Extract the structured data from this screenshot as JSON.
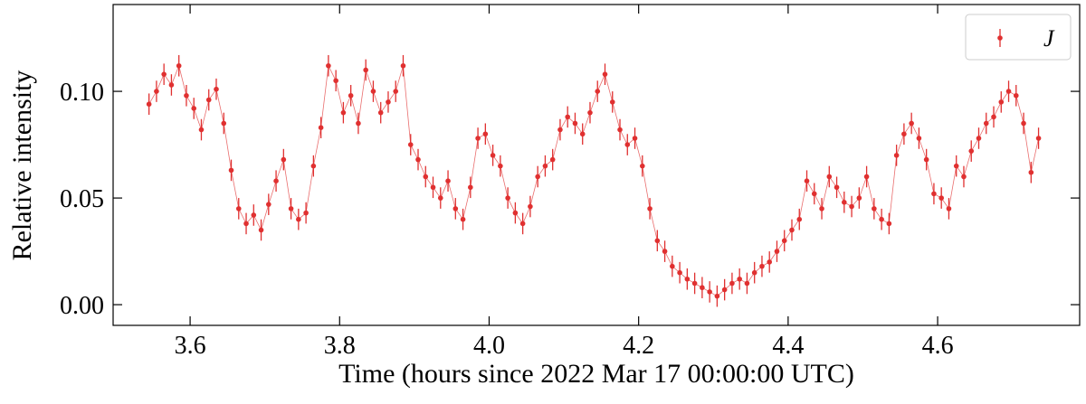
{
  "chart_data": {
    "type": "errorbar",
    "xlabel": "Time (hours since 2022 Mar 17 00:00:00 UTC)",
    "ylabel": "Relative intensity",
    "xlim": [
      3.497,
      4.79
    ],
    "ylim": [
      -0.0097,
      0.1407
    ],
    "xticks": [
      {
        "value": 3.6,
        "label": "3.6"
      },
      {
        "value": 3.8,
        "label": "3.8"
      },
      {
        "value": 4.0,
        "label": "4.0"
      },
      {
        "value": 4.2,
        "label": "4.2"
      },
      {
        "value": 4.4,
        "label": "4.4"
      },
      {
        "value": 4.6,
        "label": "4.6"
      }
    ],
    "yticks": [
      {
        "value": 0,
        "label": "0.00"
      },
      {
        "value": 0.05,
        "label": "0.05"
      },
      {
        "value": 0.1,
        "label": "0.10"
      }
    ],
    "legend": "upper right",
    "series": [
      {
        "name": "J",
        "color": "#e03030",
        "error": 0.005,
        "x": [
          3.545,
          3.555,
          3.565,
          3.575,
          3.585,
          3.595,
          3.605,
          3.615,
          3.625,
          3.635,
          3.645,
          3.655,
          3.665,
          3.675,
          3.685,
          3.695,
          3.705,
          3.715,
          3.725,
          3.735,
          3.745,
          3.755,
          3.765,
          3.775,
          3.785,
          3.795,
          3.805,
          3.815,
          3.825,
          3.835,
          3.845,
          3.855,
          3.865,
          3.875,
          3.885,
          3.895,
          3.905,
          3.915,
          3.925,
          3.935,
          3.945,
          3.955,
          3.965,
          3.975,
          3.985,
          3.995,
          4.005,
          4.015,
          4.025,
          4.035,
          4.045,
          4.055,
          4.065,
          4.075,
          4.085,
          4.095,
          4.105,
          4.115,
          4.125,
          4.135,
          4.145,
          4.155,
          4.165,
          4.175,
          4.185,
          4.195,
          4.205,
          4.215,
          4.225,
          4.235,
          4.245,
          4.255,
          4.265,
          4.275,
          4.285,
          4.295,
          4.305,
          4.315,
          4.325,
          4.335,
          4.345,
          4.355,
          4.365,
          4.375,
          4.385,
          4.395,
          4.405,
          4.415,
          4.425,
          4.435,
          4.445,
          4.455,
          4.465,
          4.475,
          4.485,
          4.495,
          4.505,
          4.515,
          4.525,
          4.535,
          4.545,
          4.555,
          4.565,
          4.575,
          4.585,
          4.595,
          4.605,
          4.615,
          4.625,
          4.635,
          4.645,
          4.655,
          4.665,
          4.675,
          4.685,
          4.695,
          4.705,
          4.715,
          4.725,
          4.735
        ],
        "values": [
          0.094,
          0.1,
          0.108,
          0.103,
          0.112,
          0.098,
          0.092,
          0.082,
          0.096,
          0.101,
          0.085,
          0.063,
          0.045,
          0.038,
          0.042,
          0.035,
          0.047,
          0.058,
          0.068,
          0.045,
          0.04,
          0.043,
          0.065,
          0.083,
          0.112,
          0.105,
          0.09,
          0.098,
          0.085,
          0.11,
          0.1,
          0.09,
          0.095,
          0.1,
          0.112,
          0.075,
          0.068,
          0.06,
          0.055,
          0.05,
          0.058,
          0.045,
          0.04,
          0.055,
          0.078,
          0.08,
          0.07,
          0.065,
          0.05,
          0.043,
          0.038,
          0.046,
          0.06,
          0.065,
          0.068,
          0.082,
          0.088,
          0.085,
          0.08,
          0.09,
          0.1,
          0.108,
          0.095,
          0.082,
          0.075,
          0.078,
          0.065,
          0.045,
          0.03,
          0.025,
          0.018,
          0.015,
          0.012,
          0.01,
          0.008,
          0.006,
          0.004,
          0.007,
          0.01,
          0.012,
          0.01,
          0.015,
          0.018,
          0.02,
          0.025,
          0.03,
          0.035,
          0.04,
          0.058,
          0.052,
          0.045,
          0.06,
          0.055,
          0.048,
          0.046,
          0.05,
          0.06,
          0.045,
          0.04,
          0.038,
          0.07,
          0.08,
          0.085,
          0.078,
          0.068,
          0.052,
          0.05,
          0.045,
          0.065,
          0.06,
          0.072,
          0.078,
          0.085,
          0.088,
          0.095,
          0.1,
          0.098,
          0.085,
          0.062,
          0.078
        ]
      }
    ]
  }
}
